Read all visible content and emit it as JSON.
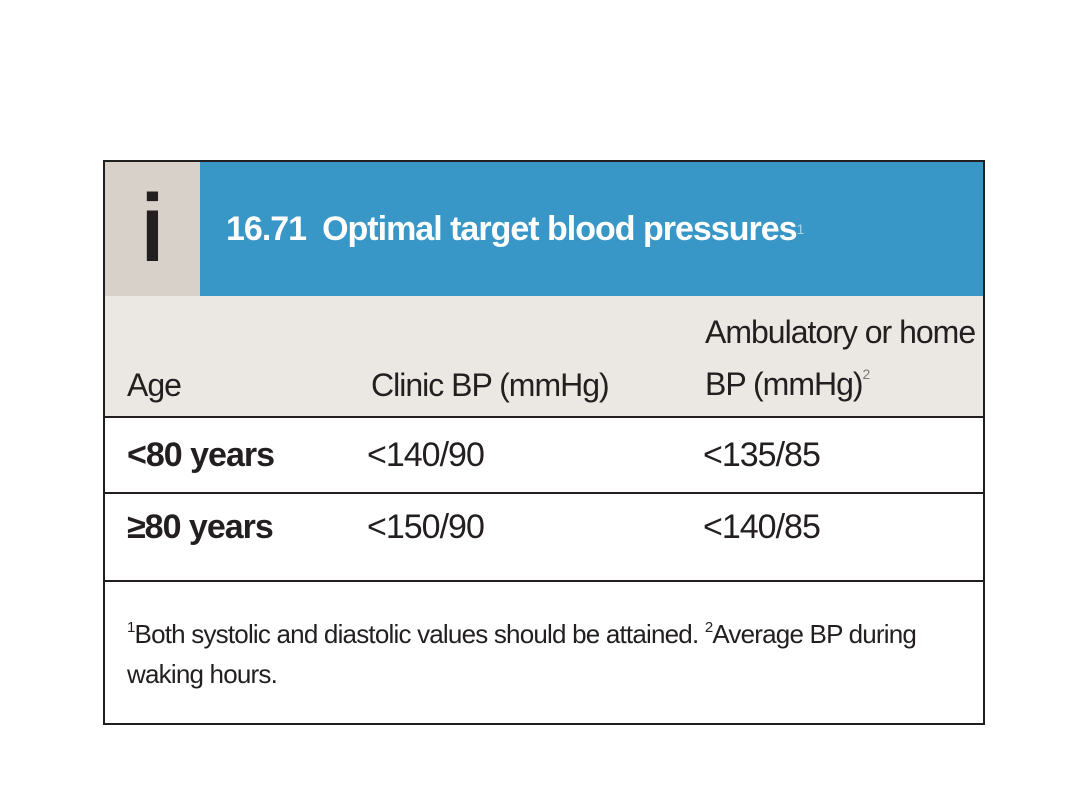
{
  "table": {
    "number": "16.71",
    "title": "Optimal target blood pressures",
    "title_note": "1",
    "info_icon": "i",
    "columns": {
      "age": "Age",
      "clinic": "Clinic BP (mmHg)",
      "ambulatory_line1": "Ambulatory or home",
      "ambulatory_line2": "BP (mmHg)",
      "ambulatory_note": "2"
    },
    "rows": [
      {
        "age": "<80 years",
        "clinic": "<140/90",
        "ambulatory": "<135/85"
      },
      {
        "age": "≥80 years",
        "clinic": "<150/90",
        "ambulatory": "<140/85"
      }
    ],
    "footnote": {
      "note1_marker": "1",
      "note1_text": "Both systolic and diastolic values should be attained. ",
      "note2_marker": "2",
      "note2_text": "Average BP during waking hours."
    },
    "colors": {
      "title_bar": "#3897c7",
      "icon_block": "#d8d1c9",
      "header_bg": "#ebe7e2"
    }
  }
}
